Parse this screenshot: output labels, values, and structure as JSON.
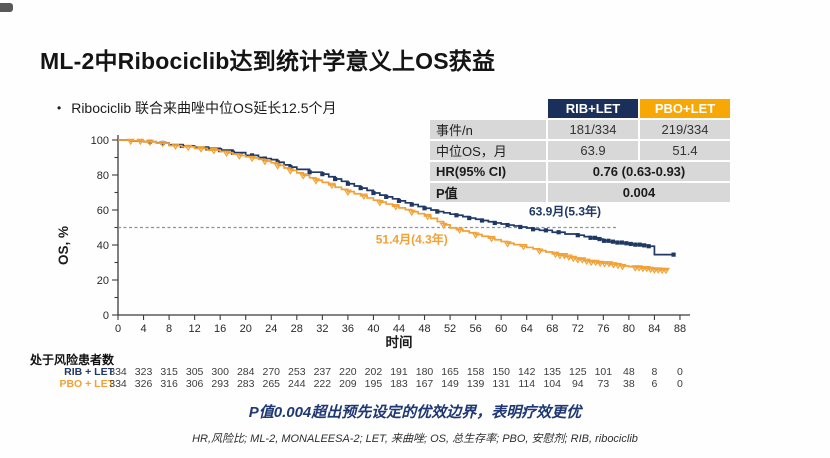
{
  "slide": {
    "title": "ML-2中Ribociclib达到统计学意义上OS获益",
    "bullet": "Ribociclib 联合来曲唑中位OS延长12.5个月",
    "statement": "P值0.004超出预先设定的优效边界，表明疗效更优",
    "footnote": "HR,风险比; ML-2, MONALEESA-2; LET, 来曲唑; OS, 总生存率; PBO, 安慰剂; RIB, ribociclib"
  },
  "colors": {
    "rib": "#1F3864",
    "pbo": "#F2A136",
    "rib_header_bg": "#1B2F5B",
    "pbo_header_bg": "#F7A804",
    "row_bg": "#D8D8D8",
    "median_dash": "#8A90A6",
    "statement_text": "#1F3873"
  },
  "summary_table": {
    "col_headers": [
      "RIB+LET",
      "PBO+LET"
    ],
    "rows": [
      {
        "label": "事件/n",
        "rib": "181/334",
        "pbo": "219/334",
        "bold": false
      },
      {
        "label": "中位OS，月",
        "rib": "63.9",
        "pbo": "51.4",
        "bold": false
      },
      {
        "label": "HR(95% CI)",
        "span": "0.76 (0.63-0.93)",
        "bold": true
      },
      {
        "label": "P值",
        "span": "0.004",
        "bold": true
      }
    ]
  },
  "chart_data": {
    "type": "line",
    "subtype": "kaplan-meier-step",
    "xlabel": "时间",
    "ylabel": "OS, %",
    "xlim": [
      0,
      88
    ],
    "ylim": [
      0,
      100
    ],
    "xticks": [
      0,
      4,
      8,
      12,
      16,
      20,
      24,
      28,
      32,
      36,
      40,
      44,
      48,
      52,
      56,
      60,
      64,
      68,
      72,
      76,
      80,
      84,
      88
    ],
    "yticks_major": [
      0,
      20,
      40,
      60,
      80,
      100
    ],
    "yticks_minor": [
      10,
      30,
      50,
      70,
      90
    ],
    "median_reference_pct": 50,
    "median_line_end_month": 78,
    "grid": false,
    "legend_position": "table-top-right",
    "annotations": [
      {
        "text": "63.9月(5.3年)",
        "series": "rib",
        "month": 70,
        "pct": 57
      },
      {
        "text": "51.4月(4.3年)",
        "series": "pbo",
        "month": 46,
        "pct": 40.8
      }
    ],
    "series": [
      {
        "name": "RIB+LET",
        "color": "#1F3864",
        "marker": "square",
        "median_months": 63.9,
        "events_n": "181/334",
        "points": [
          [
            0,
            100
          ],
          [
            2,
            99.4
          ],
          [
            4,
            99
          ],
          [
            6,
            98.3
          ],
          [
            8,
            97.3
          ],
          [
            10,
            96.6
          ],
          [
            12,
            95.9
          ],
          [
            14,
            95.2
          ],
          [
            16,
            94.2
          ],
          [
            18,
            92.8
          ],
          [
            20,
            91.2
          ],
          [
            22,
            90
          ],
          [
            23,
            89.4
          ],
          [
            24,
            88.8
          ],
          [
            25,
            87.3
          ],
          [
            26,
            85.8
          ],
          [
            27,
            84.5
          ],
          [
            28,
            83.2
          ],
          [
            30,
            81.6
          ],
          [
            32,
            80.5
          ],
          [
            33,
            79
          ],
          [
            34,
            77.7
          ],
          [
            35,
            76.4
          ],
          [
            36,
            75
          ],
          [
            37,
            73.7
          ],
          [
            38,
            72.5
          ],
          [
            39,
            71.2
          ],
          [
            40,
            69.7
          ],
          [
            41,
            68.5
          ],
          [
            42,
            67.5
          ],
          [
            43,
            66.4
          ],
          [
            44,
            65.2
          ],
          [
            45,
            64.1
          ],
          [
            46,
            63.1
          ],
          [
            47,
            62
          ],
          [
            48,
            61
          ],
          [
            49,
            60
          ],
          [
            50,
            59.1
          ],
          [
            51,
            58.4
          ],
          [
            52,
            57.6
          ],
          [
            53,
            57
          ],
          [
            54,
            56.2
          ],
          [
            55,
            55.4
          ],
          [
            56,
            54.7
          ],
          [
            57,
            54
          ],
          [
            58,
            53.3
          ],
          [
            59,
            52.6
          ],
          [
            60,
            52
          ],
          [
            61,
            51.4
          ],
          [
            62,
            50.9
          ],
          [
            63,
            50.3
          ],
          [
            64,
            49.7
          ],
          [
            65,
            49
          ],
          [
            66,
            48.4
          ],
          [
            68,
            47.3
          ],
          [
            70,
            46.3
          ],
          [
            72,
            45.6
          ],
          [
            73,
            44.8
          ],
          [
            74,
            44.1
          ],
          [
            75,
            43.4
          ],
          [
            76,
            42.4
          ],
          [
            77,
            41.9
          ],
          [
            78,
            41.4
          ],
          [
            79,
            41
          ],
          [
            80,
            40.6
          ],
          [
            81,
            40.2
          ],
          [
            82,
            39.8
          ],
          [
            83,
            39.3
          ],
          [
            84,
            34.5
          ],
          [
            87,
            34.5
          ]
        ],
        "censor_months": [
          5,
          7,
          10,
          14,
          16,
          18,
          21,
          23,
          25,
          27,
          30,
          32,
          34,
          36,
          38,
          40,
          42,
          44,
          46,
          48,
          50,
          53,
          55,
          57,
          59,
          61,
          63,
          65,
          67,
          69,
          72,
          74,
          74.7,
          75.4,
          76.1,
          76.8,
          77.5,
          78.2,
          78.9,
          79.6,
          80.3,
          81,
          81.7,
          82.4,
          83.1,
          87
        ]
      },
      {
        "name": "PBO+LET",
        "color": "#F2A136",
        "marker": "triangle-down",
        "median_months": 51.4,
        "events_n": "219/334",
        "points": [
          [
            0,
            100
          ],
          [
            2,
            99.5
          ],
          [
            4,
            99
          ],
          [
            6,
            98.2
          ],
          [
            8,
            96.8
          ],
          [
            10,
            96.1
          ],
          [
            12,
            95.2
          ],
          [
            14,
            94.2
          ],
          [
            16,
            93.5
          ],
          [
            17,
            92.7
          ],
          [
            18,
            92
          ],
          [
            19,
            91.1
          ],
          [
            20,
            90.4
          ],
          [
            21,
            89.8
          ],
          [
            22,
            89
          ],
          [
            23,
            88
          ],
          [
            24,
            87
          ],
          [
            25,
            85.5
          ],
          [
            26,
            84
          ],
          [
            27,
            82.6
          ],
          [
            28,
            81.2
          ],
          [
            29,
            79.8
          ],
          [
            30,
            78.4
          ],
          [
            31,
            77
          ],
          [
            32,
            75.8
          ],
          [
            33,
            74.4
          ],
          [
            34,
            73
          ],
          [
            35,
            71.8
          ],
          [
            36,
            70.5
          ],
          [
            37,
            69.3
          ],
          [
            38,
            68.2
          ],
          [
            39,
            66.9
          ],
          [
            40,
            65.6
          ],
          [
            41,
            64.5
          ],
          [
            42,
            63.4
          ],
          [
            43,
            62.2
          ],
          [
            44,
            61.2
          ],
          [
            45,
            60.2
          ],
          [
            46,
            59
          ],
          [
            47,
            57.9
          ],
          [
            48,
            56.6
          ],
          [
            49,
            55.2
          ],
          [
            50,
            53.4
          ],
          [
            51,
            51.5
          ],
          [
            52,
            49.8
          ],
          [
            53,
            48.8
          ],
          [
            54,
            48
          ],
          [
            55,
            47
          ],
          [
            56,
            46
          ],
          [
            57,
            45
          ],
          [
            58,
            44
          ],
          [
            59,
            43
          ],
          [
            60,
            42
          ],
          [
            61,
            41
          ],
          [
            62,
            40.2
          ],
          [
            63,
            39.4
          ],
          [
            64,
            38.6
          ],
          [
            65,
            37.8
          ],
          [
            66,
            36.8
          ],
          [
            67,
            36
          ],
          [
            68,
            35
          ],
          [
            69,
            34.2
          ],
          [
            70,
            33.4
          ],
          [
            71,
            32.6
          ],
          [
            72,
            31.8
          ],
          [
            73,
            31
          ],
          [
            74,
            30.4
          ],
          [
            75,
            29.8
          ],
          [
            76,
            29.6
          ],
          [
            77,
            29
          ],
          [
            78,
            28.6
          ],
          [
            79,
            28
          ],
          [
            80,
            27.6
          ],
          [
            81,
            27.2
          ],
          [
            82,
            26.8
          ],
          [
            83,
            26.4
          ],
          [
            84,
            26
          ],
          [
            85,
            25.8
          ],
          [
            86,
            25.6
          ]
        ],
        "censor_months": [
          2,
          3.5,
          5,
          7,
          9,
          11,
          13,
          15,
          17,
          19,
          21,
          23,
          25,
          27,
          29,
          31,
          33.5,
          36,
          38.5,
          41,
          43.5,
          46,
          48.5,
          51,
          53.5,
          56,
          58.5,
          61,
          63.5,
          66,
          68.5,
          69.2,
          69.9,
          70.6,
          71.3,
          72,
          72.7,
          73.4,
          74.1,
          74.8,
          75.5,
          76.2,
          76.9,
          77.6,
          78.3,
          79,
          81,
          81.6,
          82.2,
          82.8,
          83.4,
          84,
          84.6,
          85.2,
          85.8
        ]
      }
    ]
  },
  "risk_table": {
    "title": "处于风险患者数",
    "months": [
      0,
      4,
      8,
      12,
      16,
      20,
      24,
      28,
      32,
      36,
      40,
      44,
      48,
      52,
      56,
      60,
      64,
      68,
      72,
      76,
      80,
      84,
      88
    ],
    "rows": [
      {
        "label": "RIB + LET",
        "color": "#1F3864",
        "values": [
          334,
          323,
          315,
          305,
          300,
          284,
          270,
          253,
          237,
          220,
          202,
          191,
          180,
          165,
          158,
          150,
          142,
          135,
          125,
          101,
          48,
          8,
          0
        ]
      },
      {
        "label": "PBO + LET",
        "color": "#F2A136",
        "values": [
          334,
          326,
          316,
          306,
          293,
          283,
          265,
          244,
          222,
          209,
          195,
          183,
          167,
          149,
          139,
          131,
          114,
          104,
          94,
          73,
          38,
          6,
          0
        ]
      }
    ]
  }
}
